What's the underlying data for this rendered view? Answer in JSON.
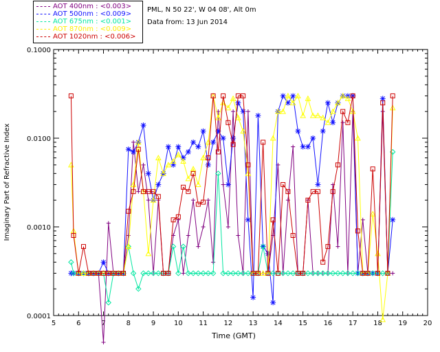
{
  "header": {
    "site": "PML, N 50 22', W 04 08', Alt 0m",
    "date": "Data from: 13 Jun 2014"
  },
  "chart_data": {
    "type": "line",
    "xlabel": "Time (GMT)",
    "ylabel": "Imaginary Part of Refractive Index",
    "xlim": [
      5,
      20
    ],
    "ylim": [
      0.0001,
      0.1
    ],
    "yscale": "log",
    "xticks": [
      "5",
      "6",
      "7",
      "8",
      "9",
      "10",
      "11",
      "12",
      "13",
      "14",
      "15",
      "16",
      "17",
      "18",
      "19",
      "20"
    ],
    "yticks": [
      "0.0001",
      "0.0010",
      "0.0100",
      "0.1000"
    ],
    "legend_placement": "top-left",
    "series": [
      {
        "name": "AOT  400nm : <0.003>",
        "color": "#800080",
        "marker": "plus",
        "x": [
          5.7,
          5.8,
          6.0,
          6.2,
          6.4,
          6.6,
          6.8,
          7.0,
          7.2,
          7.4,
          7.6,
          7.8,
          8.0,
          8.2,
          8.4,
          8.6,
          8.8,
          9.0,
          9.2,
          9.4,
          9.6,
          9.8,
          10.0,
          10.2,
          10.4,
          10.6,
          10.8,
          11.0,
          11.2,
          11.4,
          11.6,
          11.8,
          12.0,
          12.2,
          12.4,
          12.6,
          12.8,
          13.0,
          13.2,
          13.4,
          13.6,
          13.8,
          14.0,
          14.2,
          14.4,
          14.6,
          14.8,
          15.0,
          15.2,
          15.4,
          15.6,
          15.8,
          16.0,
          16.2,
          16.4,
          16.6,
          16.8,
          17.0,
          17.2,
          17.4,
          17.6,
          17.8,
          18.0,
          18.2,
          18.4,
          18.6
        ],
        "y": [
          0.0003,
          0.0003,
          0.0003,
          0.0003,
          0.0003,
          0.0003,
          0.0003,
          5e-05,
          0.0011,
          0.0003,
          0.0003,
          0.0003,
          0.0008,
          0.009,
          0.0025,
          0.005,
          0.002,
          0.0003,
          0.002,
          0.0003,
          0.0003,
          0.0008,
          0.0012,
          0.0003,
          0.0008,
          0.002,
          0.0006,
          0.001,
          0.002,
          0.0004,
          0.02,
          0.003,
          0.001,
          0.02,
          0.0008,
          0.0003,
          0.02,
          0.0003,
          0.0003,
          0.0003,
          0.0003,
          0.0008,
          0.005,
          0.0003,
          0.002,
          0.008,
          0.0003,
          0.0003,
          0.002,
          0.0003,
          0.0003,
          0.0003,
          0.0003,
          0.003,
          0.0006,
          0.015,
          0.0003,
          0.02,
          0.0003,
          0.0012,
          0.0003,
          0.0003,
          0.0003,
          0.02,
          0.0003,
          0.0003
        ]
      },
      {
        "name": "AOT  500nm : <0.009>",
        "color": "#1010ff",
        "marker": "asterisk",
        "x": [
          5.7,
          5.8,
          6.0,
          6.2,
          6.4,
          6.6,
          6.8,
          7.0,
          7.2,
          7.4,
          7.6,
          7.8,
          8.0,
          8.2,
          8.4,
          8.6,
          8.8,
          9.0,
          9.2,
          9.4,
          9.6,
          9.8,
          10.0,
          10.2,
          10.4,
          10.6,
          10.8,
          11.0,
          11.2,
          11.4,
          11.6,
          11.8,
          12.0,
          12.2,
          12.4,
          12.6,
          12.8,
          13.0,
          13.2,
          13.4,
          13.6,
          13.8,
          14.0,
          14.2,
          14.4,
          14.6,
          14.8,
          15.0,
          15.2,
          15.4,
          15.6,
          15.8,
          16.0,
          16.2,
          16.4,
          16.6,
          16.8,
          17.0,
          17.2,
          17.4,
          17.6,
          17.8,
          18.0,
          18.2,
          18.4,
          18.6
        ],
        "y": [
          0.0003,
          0.0003,
          0.0003,
          0.0003,
          0.0003,
          0.0003,
          0.0003,
          0.0004,
          0.0003,
          0.0003,
          0.0003,
          0.0003,
          0.0075,
          0.007,
          0.009,
          0.014,
          0.004,
          0.002,
          0.003,
          0.004,
          0.008,
          0.005,
          0.008,
          0.006,
          0.007,
          0.009,
          0.008,
          0.012,
          0.005,
          0.009,
          0.012,
          0.01,
          0.003,
          0.01,
          0.025,
          0.02,
          0.0012,
          0.00016,
          0.018,
          0.0006,
          0.0005,
          0.00014,
          0.02,
          0.03,
          0.025,
          0.03,
          0.012,
          0.008,
          0.008,
          0.01,
          0.003,
          0.012,
          0.025,
          0.015,
          0.025,
          0.03,
          0.03,
          0.03,
          0.0003,
          0.0003,
          0.0003,
          0.0003,
          0.0003,
          0.028,
          0.0003,
          0.0012
        ]
      },
      {
        "name": "AOT  675nm : <0.001>",
        "color": "#00e6a0",
        "marker": "diamond",
        "x": [
          5.7,
          5.8,
          6.0,
          6.2,
          6.4,
          6.6,
          6.8,
          7.0,
          7.2,
          7.4,
          7.6,
          7.8,
          8.0,
          8.2,
          8.4,
          8.6,
          8.8,
          9.0,
          9.2,
          9.4,
          9.6,
          9.8,
          10.0,
          10.2,
          10.4,
          10.6,
          10.8,
          11.0,
          11.2,
          11.4,
          11.6,
          11.8,
          12.0,
          12.2,
          12.4,
          12.6,
          12.8,
          13.0,
          13.2,
          13.4,
          13.6,
          13.8,
          14.0,
          14.2,
          14.4,
          14.6,
          14.8,
          15.0,
          15.2,
          15.4,
          15.6,
          15.8,
          16.0,
          16.2,
          16.4,
          16.6,
          16.8,
          17.0,
          17.2,
          17.4,
          17.6,
          17.8,
          18.0,
          18.2,
          18.4,
          18.6
        ],
        "y": [
          0.0004,
          0.0003,
          0.0003,
          0.0003,
          0.0003,
          0.0003,
          0.0003,
          0.0003,
          0.00014,
          0.0003,
          0.0003,
          0.0003,
          0.0006,
          0.0003,
          0.0002,
          0.0003,
          0.0003,
          0.0003,
          0.0003,
          0.0003,
          0.0003,
          0.0006,
          0.0003,
          0.0006,
          0.0003,
          0.0003,
          0.0003,
          0.0003,
          0.0003,
          0.0003,
          0.004,
          0.0003,
          0.0003,
          0.0003,
          0.0003,
          0.0003,
          0.0003,
          0.0003,
          0.0003,
          0.0006,
          0.0003,
          0.0003,
          0.0003,
          0.0003,
          0.0003,
          0.0003,
          0.0003,
          0.0003,
          0.0003,
          0.0003,
          0.0003,
          0.0003,
          0.0003,
          0.0003,
          0.0003,
          0.0003,
          0.0003,
          0.0003,
          0.0003,
          0.0003,
          0.0003,
          0.0003,
          0.0003,
          0.0003,
          0.0003,
          0.007
        ]
      },
      {
        "name": "AOT  870nm : <0.009>",
        "color": "#ffff00",
        "marker": "triangle",
        "x": [
          5.7,
          5.8,
          6.0,
          6.2,
          6.4,
          6.6,
          6.8,
          7.0,
          7.2,
          7.4,
          7.6,
          7.8,
          8.0,
          8.2,
          8.4,
          8.6,
          8.8,
          9.0,
          9.2,
          9.4,
          9.6,
          9.8,
          10.0,
          10.2,
          10.4,
          10.6,
          10.8,
          11.0,
          11.2,
          11.4,
          11.6,
          11.8,
          12.0,
          12.2,
          12.4,
          12.6,
          12.8,
          13.0,
          13.2,
          13.4,
          13.6,
          13.8,
          14.0,
          14.2,
          14.4,
          14.6,
          14.8,
          15.0,
          15.2,
          15.4,
          15.6,
          15.8,
          16.0,
          16.2,
          16.4,
          16.6,
          16.8,
          17.0,
          17.2,
          17.4,
          17.6,
          17.8,
          18.0,
          18.2,
          18.4,
          18.6
        ],
        "y": [
          0.005,
          0.0009,
          0.0003,
          0.0003,
          0.0003,
          0.0003,
          0.0003,
          0.0003,
          0.0003,
          0.0003,
          0.0003,
          0.0003,
          0.0006,
          0.003,
          0.009,
          0.0025,
          0.0005,
          0.002,
          0.006,
          0.004,
          0.005,
          0.0055,
          0.0065,
          0.0055,
          0.0035,
          0.0045,
          0.003,
          0.006,
          0.009,
          0.03,
          0.017,
          0.025,
          0.022,
          0.028,
          0.017,
          0.012,
          0.004,
          0.0003,
          0.0003,
          0.0003,
          0.0003,
          0.01,
          0.02,
          0.02,
          0.03,
          0.025,
          0.03,
          0.018,
          0.028,
          0.018,
          0.018,
          0.017,
          0.015,
          0.02,
          0.025,
          0.03,
          0.028,
          0.02,
          0.01,
          0.0003,
          0.0003,
          0.0014,
          0.0005,
          9e-05,
          0.0003,
          0.022
        ]
      },
      {
        "name": "AOT 1020nm : <0.006>",
        "color": "#cc0000",
        "marker": "square",
        "x": [
          5.7,
          5.8,
          6.0,
          6.2,
          6.4,
          6.6,
          6.8,
          7.0,
          7.2,
          7.4,
          7.6,
          7.8,
          8.0,
          8.2,
          8.4,
          8.6,
          8.8,
          9.0,
          9.2,
          9.4,
          9.6,
          9.8,
          10.0,
          10.2,
          10.4,
          10.6,
          10.8,
          11.0,
          11.2,
          11.4,
          11.6,
          11.8,
          12.0,
          12.2,
          12.4,
          12.6,
          12.8,
          13.0,
          13.2,
          13.4,
          13.6,
          13.8,
          14.0,
          14.2,
          14.4,
          14.6,
          14.8,
          15.0,
          15.2,
          15.4,
          15.6,
          15.8,
          16.0,
          16.2,
          16.4,
          16.6,
          16.8,
          17.0,
          17.2,
          17.4,
          17.6,
          17.8,
          18.0,
          18.2,
          18.4,
          18.6
        ],
        "y": [
          0.03,
          0.0008,
          0.0003,
          0.0006,
          0.0003,
          0.0003,
          0.0003,
          0.0003,
          0.0003,
          0.0003,
          0.0003,
          0.0003,
          0.0015,
          0.0025,
          0.0075,
          0.0025,
          0.0025,
          0.0025,
          0.0022,
          0.0003,
          0.0003,
          0.0012,
          0.0013,
          0.0028,
          0.0025,
          0.004,
          0.0018,
          0.0019,
          0.006,
          0.03,
          0.007,
          0.03,
          0.015,
          0.0085,
          0.03,
          0.03,
          0.005,
          0.0003,
          0.0003,
          0.009,
          0.0003,
          0.0012,
          0.0003,
          0.003,
          0.0025,
          0.0008,
          0.0003,
          0.0003,
          0.002,
          0.0025,
          0.0025,
          0.0004,
          0.0006,
          0.0025,
          0.005,
          0.02,
          0.015,
          0.03,
          0.0009,
          0.0003,
          0.0003,
          0.0045,
          0.0003,
          0.025,
          0.0003,
          0.03
        ]
      }
    ]
  }
}
